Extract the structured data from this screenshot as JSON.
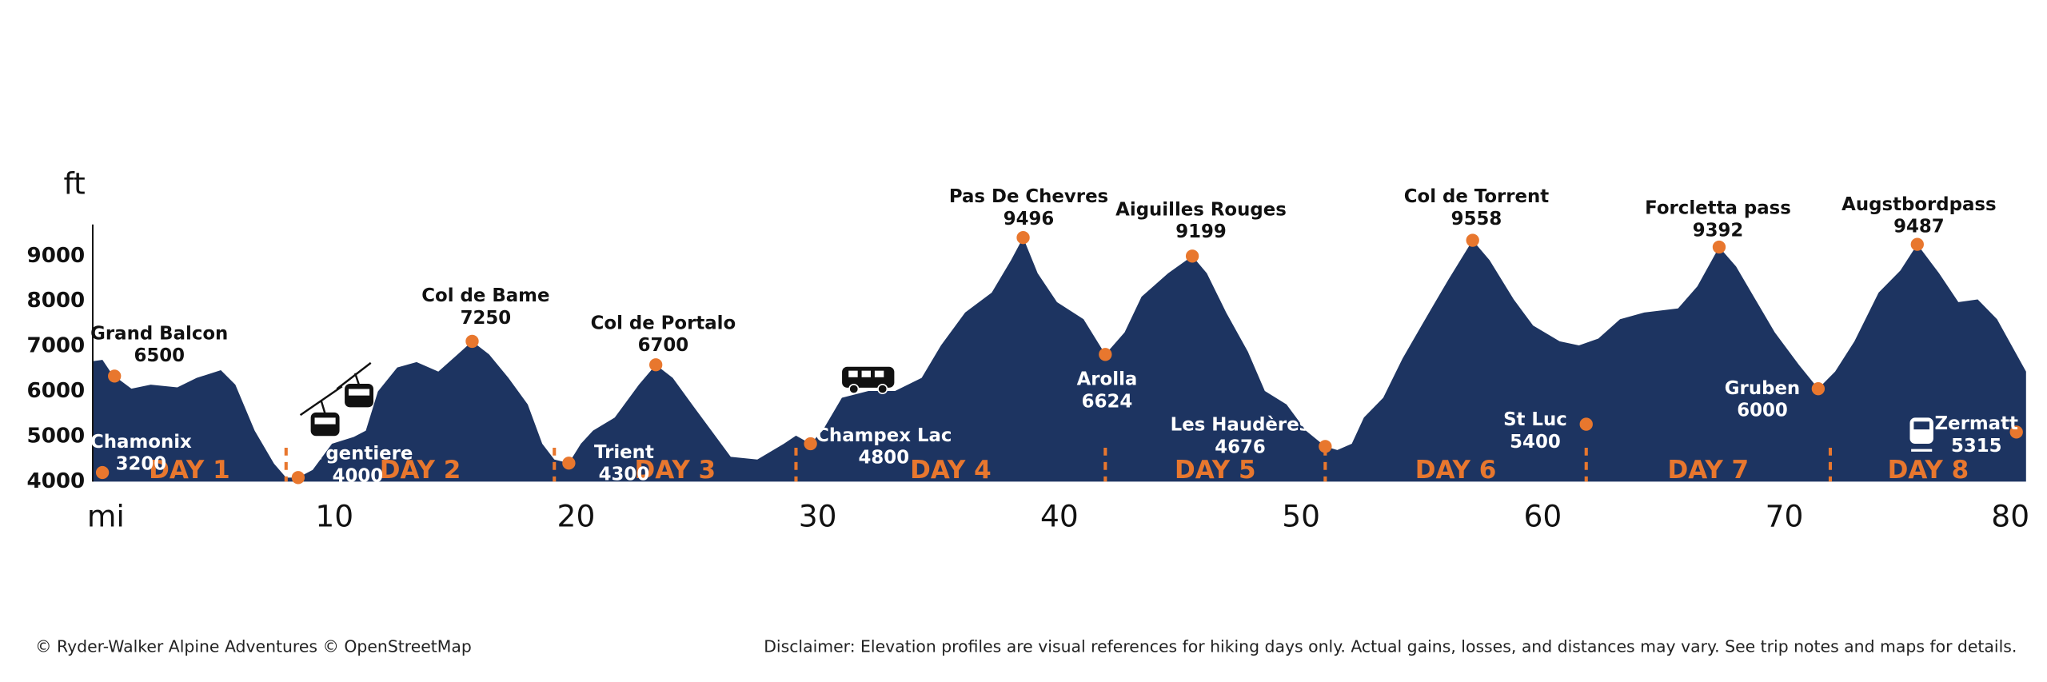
{
  "chart_data": {
    "type": "area",
    "x_label": "mi",
    "y_label": "ft",
    "color": "#1d3461",
    "marker_color": "#e8772e",
    "xlim": [
      0,
      80
    ],
    "ylim": [
      4000,
      9700
    ],
    "xticks": [
      10,
      20,
      30,
      40,
      50,
      60,
      70,
      80
    ],
    "yticks": [
      4000,
      5000,
      6000,
      7000,
      8000,
      9000
    ],
    "grid": false,
    "x": [
      0,
      0.4,
      0.8,
      1.6,
      2.4,
      3.5,
      4.3,
      5.3,
      5.9,
      6.7,
      7.5,
      8.0,
      8.5,
      9.1,
      9.9,
      10.8,
      11.3,
      11.8,
      12.6,
      13.4,
      14.3,
      15.1,
      15.7,
      16.4,
      17.2,
      18.0,
      18.6,
      19.1,
      19.7,
      20.2,
      20.7,
      21.6,
      22.6,
      23.3,
      24.0,
      24.8,
      25.6,
      26.4,
      27.5,
      28.6,
      29.1,
      29.7,
      30.2,
      31.0,
      32.1,
      33.2,
      34.3,
      35.1,
      36.1,
      37.2,
      38.0,
      38.5,
      39.1,
      39.9,
      41.0,
      41.9,
      42.7,
      43.4,
      44.5,
      45.5,
      46.1,
      46.9,
      47.8,
      48.5,
      49.4,
      50.2,
      51.0,
      51.5,
      52.1,
      52.6,
      53.4,
      54.2,
      55.3,
      56.1,
      57.1,
      57.8,
      58.8,
      59.6,
      60.7,
      61.5,
      62.3,
      63.2,
      64.2,
      65.6,
      66.4,
      67.3,
      68.0,
      68.8,
      69.6,
      70.6,
      71.4,
      72.1,
      72.9,
      73.9,
      74.8,
      75.5,
      76.4,
      77.2,
      78.0,
      78.8,
      80.0
    ],
    "values": [
      6670,
      6700,
      6380,
      6060,
      6150,
      6090,
      6300,
      6470,
      6150,
      5130,
      4400,
      4090,
      4090,
      4260,
      4840,
      4990,
      5130,
      6000,
      6530,
      6650,
      6440,
      6820,
      7110,
      6820,
      6300,
      5710,
      4840,
      4490,
      4410,
      4840,
      5130,
      5420,
      6150,
      6590,
      6300,
      5710,
      5130,
      4550,
      4490,
      4840,
      5020,
      4840,
      5130,
      5860,
      6010,
      6010,
      6300,
      7020,
      7750,
      8190,
      8910,
      9410,
      8620,
      7980,
      7600,
      6820,
      7310,
      8100,
      8620,
      9000,
      8620,
      7750,
      6880,
      6010,
      5710,
      5130,
      4780,
      4700,
      4840,
      5420,
      5860,
      6730,
      7750,
      8480,
      9350,
      8910,
      8040,
      7460,
      7110,
      7020,
      7170,
      7600,
      7750,
      7840,
      8330,
      9200,
      8770,
      8040,
      7310,
      6590,
      6060,
      6440,
      7110,
      8190,
      8680,
      9260,
      8620,
      7980,
      8040,
      7600,
      6440
    ],
    "waypoints": [
      {
        "name": "Chamonix",
        "elevation": 3200,
        "x": 0.4
      },
      {
        "name": "Grand Balcon",
        "elevation": 6500,
        "x": 0.9
      },
      {
        "name": "Argentiere",
        "elevation": 4000,
        "x": 8.5
      },
      {
        "name": "Col de Bame",
        "elevation": 7250,
        "x": 15.7
      },
      {
        "name": "Trient",
        "elevation": 4300,
        "x": 19.7
      },
      {
        "name": "Col de Portalo",
        "elevation": 6700,
        "x": 23.3
      },
      {
        "name": "Champex Lac",
        "elevation": 4800,
        "x": 29.7
      },
      {
        "name": "Pas De Chevres",
        "elevation": 9496,
        "x": 38.5
      },
      {
        "name": "Arolla",
        "elevation": 6624,
        "x": 41.9
      },
      {
        "name": "Aiguilles Rouges",
        "elevation": 9199,
        "x": 45.5
      },
      {
        "name": "Les Haudères",
        "elevation": 4676,
        "x": 51.0
      },
      {
        "name": "Col de Torrent",
        "elevation": 9558,
        "x": 57.1
      },
      {
        "name": "St Luc",
        "elevation": 5400,
        "x": 61.8
      },
      {
        "name": "Forcletta pass",
        "elevation": 9392,
        "x": 67.3
      },
      {
        "name": "Gruben",
        "elevation": 6000,
        "x": 71.4
      },
      {
        "name": "Augstbordpass",
        "elevation": 9487,
        "x": 75.5
      },
      {
        "name": "Zermatt",
        "elevation": 5315,
        "x": 79.6
      }
    ],
    "days": {
      "labels": [
        "DAY 1",
        "DAY 2",
        "DAY 3",
        "DAY 4",
        "DAY 5",
        "DAY 6",
        "DAY 7",
        "DAY 8"
      ],
      "boundaries": [
        8.0,
        19.1,
        29.1,
        41.9,
        51.0,
        61.8,
        71.9
      ]
    }
  },
  "footer": {
    "credits": "© Ryder-Walker Alpine Adventures © OpenStreetMap",
    "disclaimer": "Disclaimer: Elevation profiles are visual references for hiking days only. Actual gains, losses, and distances may vary. See trip notes and maps for details."
  }
}
